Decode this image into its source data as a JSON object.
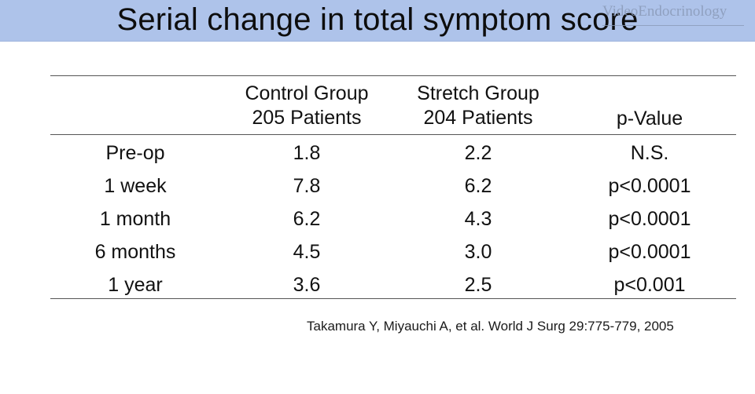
{
  "slide": {
    "title": "Serial change in total symptom score",
    "watermark": "VideoEndocrinology"
  },
  "table": {
    "headers": [
      {
        "line1": "",
        "line2": ""
      },
      {
        "line1": "Control Group",
        "line2": "205 Patients"
      },
      {
        "line1": "Stretch Group",
        "line2": "204 Patients"
      },
      {
        "line1": "p-Value",
        "line2": ""
      }
    ],
    "rows": [
      [
        "Pre-op",
        "1.8",
        "2.2",
        "N.S."
      ],
      [
        "1 week",
        "7.8",
        "6.2",
        "p<0.0001"
      ],
      [
        "1 month",
        "6.2",
        "4.3",
        "p<0.0001"
      ],
      [
        "6 months",
        "4.5",
        "3.0",
        "p<0.0001"
      ],
      [
        "1 year",
        "3.6",
        "2.5",
        "p<0.001"
      ]
    ]
  },
  "citation": "Takamura Y, Miyauchi A, et al. World J Surg 29:775-779, 2005"
}
